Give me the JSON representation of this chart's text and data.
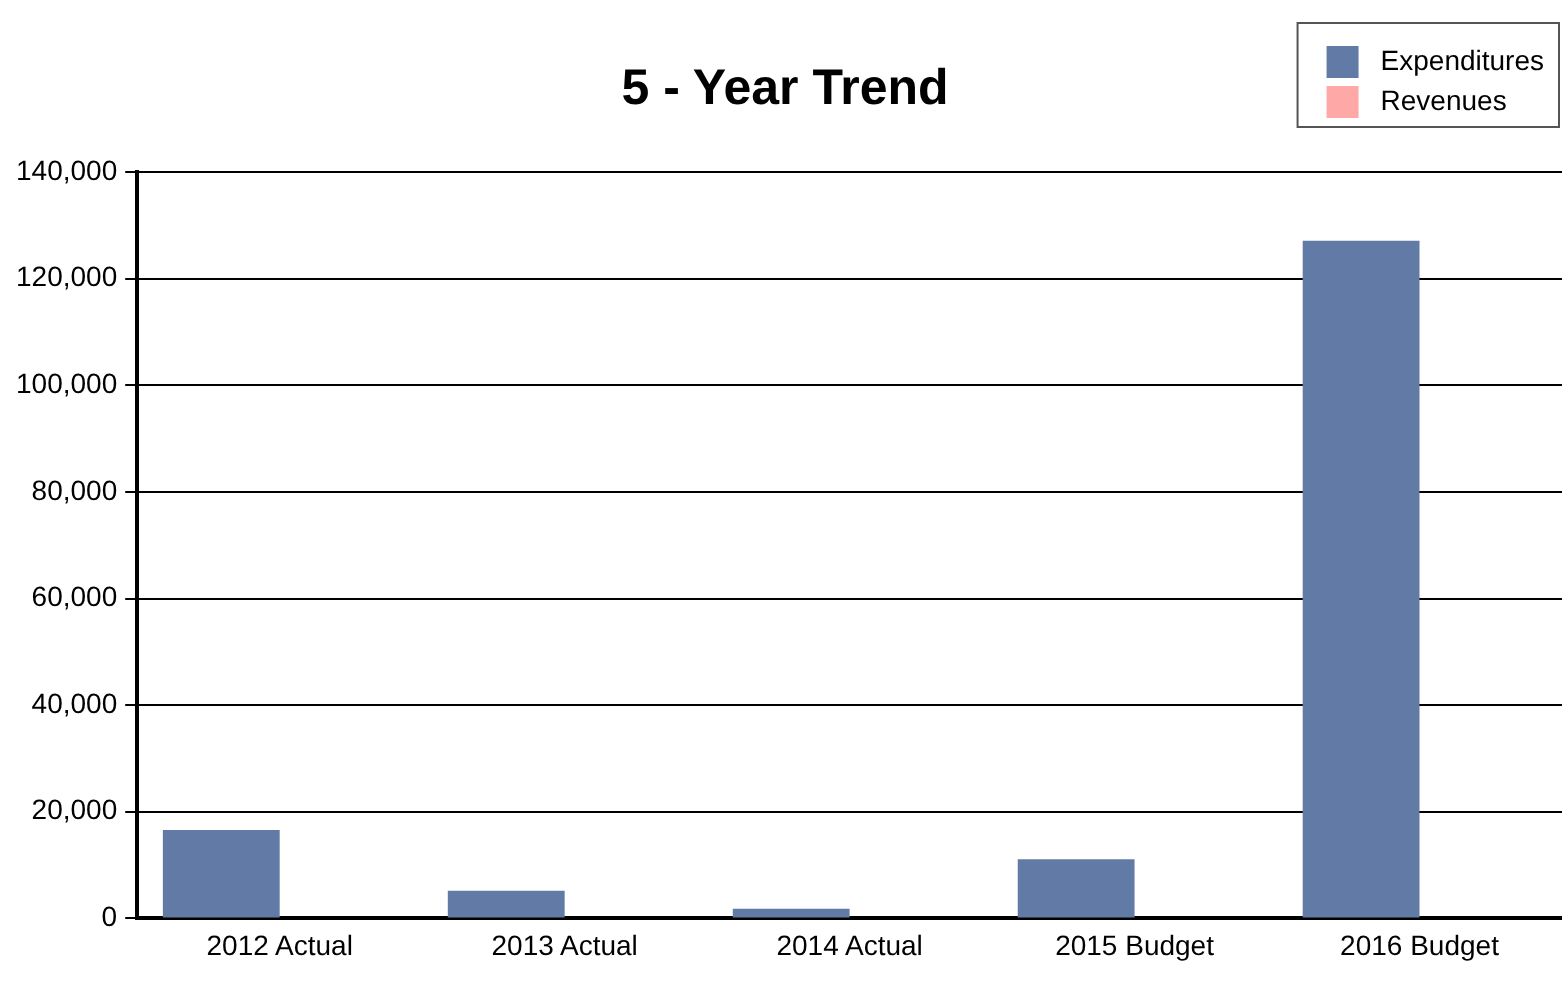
{
  "chart_data": {
    "type": "bar",
    "title": "5 - Year Trend",
    "categories": [
      "2012 Actual",
      "2013 Actual",
      "2014 Actual",
      "2015 Budget",
      "2016 Budget"
    ],
    "series": [
      {
        "name": "Expenditures",
        "color": "#627ba6",
        "values": [
          16600,
          5200,
          1800,
          11100,
          127100
        ]
      },
      {
        "name": "Revenues",
        "color": "#ffa8a8",
        "values": [
          0,
          0,
          0,
          0,
          0
        ]
      }
    ],
    "ylim": [
      0,
      140000
    ],
    "yticks": [
      {
        "value": 0,
        "label": "0"
      },
      {
        "value": 20000,
        "label": "20,000"
      },
      {
        "value": 40000,
        "label": "40,000"
      },
      {
        "value": 60000,
        "label": "60,000"
      },
      {
        "value": 80000,
        "label": "80,000"
      },
      {
        "value": 100000,
        "label": "100,000"
      },
      {
        "value": 120000,
        "label": "120,000"
      },
      {
        "value": 140000,
        "label": "140,000"
      }
    ],
    "grid": "y",
    "legend": "top right"
  }
}
